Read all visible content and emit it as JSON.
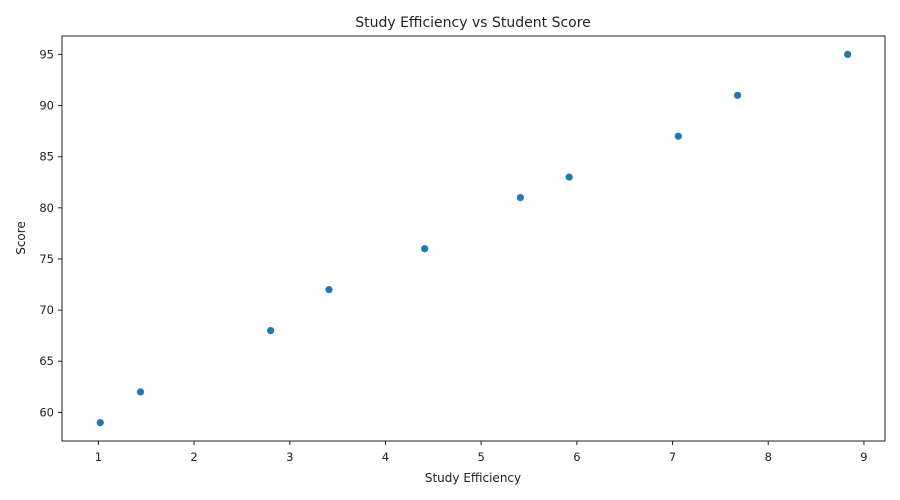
{
  "chart_data": {
    "type": "scatter",
    "title": "Study Efficiency vs Student Score",
    "xlabel": "Study Efficiency",
    "ylabel": "Score",
    "xlim": [
      0.62,
      9.22
    ],
    "ylim": [
      57.2,
      96.8
    ],
    "xticks": [
      1,
      2,
      3,
      4,
      5,
      6,
      7,
      8,
      9
    ],
    "yticks": [
      60,
      65,
      70,
      75,
      80,
      85,
      90,
      95
    ],
    "grid": false,
    "marker_color": "#1f77b4",
    "series": [
      {
        "x": [
          1.02,
          1.44,
          2.8,
          3.41,
          4.41,
          5.41,
          5.92,
          7.06,
          7.68,
          8.83
        ],
        "y": [
          59,
          62,
          68,
          72,
          76,
          81,
          83,
          87,
          91,
          95
        ]
      }
    ]
  }
}
